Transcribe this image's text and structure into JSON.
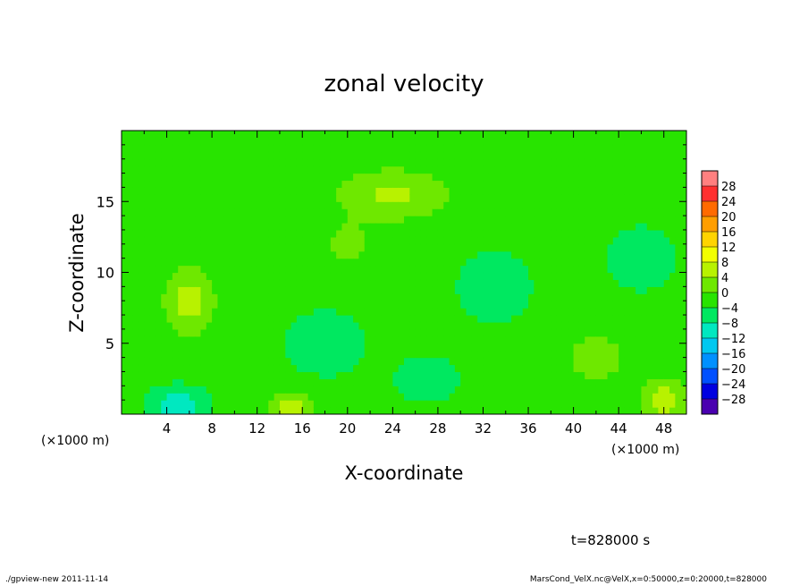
{
  "chart_data": {
    "type": "heatmap",
    "title": "zonal velocity",
    "xlabel": "X-coordinate",
    "ylabel": "Z-coordinate",
    "x_unit_left": "(×1000 m)",
    "x_unit_right": "(×1000 m)",
    "xlim": [
      0,
      50
    ],
    "ylim": [
      0,
      20
    ],
    "x_ticks": [
      "4",
      "8",
      "12",
      "16",
      "20",
      "24",
      "28",
      "32",
      "36",
      "40",
      "44",
      "48"
    ],
    "y_ticks": [
      "5",
      "10",
      "15"
    ],
    "colorbar": {
      "levels": [
        "28",
        "24",
        "20",
        "16",
        "12",
        "8",
        "4",
        "0",
        "−4",
        "−8",
        "−12",
        "−16",
        "−20",
        "−24",
        "−28"
      ],
      "colors": [
        "#ff8080",
        "#ff3030",
        "#ff6a00",
        "#ff9e00",
        "#ffd400",
        "#f2ff00",
        "#b8f200",
        "#6ee800",
        "#28e400",
        "#00e860",
        "#00e8c0",
        "#00c8f0",
        "#0090ff",
        "#0050ff",
        "#0000e0",
        "#4a00b0"
      ]
    },
    "field": {
      "background_value": -3,
      "features": [
        {
          "x": 24,
          "z": 15.5,
          "value": 5,
          "sx": 5,
          "sz": 1.8
        },
        {
          "x": 6,
          "z": 8,
          "value": 6,
          "sx": 2.2,
          "sz": 2.5
        },
        {
          "x": 46,
          "z": 11,
          "value": -8,
          "sx": 2.5,
          "sz": 1.8
        },
        {
          "x": 20,
          "z": 12,
          "value": 2,
          "sx": 2,
          "sz": 1.5
        },
        {
          "x": 5,
          "z": 0.5,
          "value": -12,
          "sx": 2.2,
          "sz": 1.2
        },
        {
          "x": 15,
          "z": 0.5,
          "value": 6,
          "sx": 2,
          "sz": 1.2
        },
        {
          "x": 18,
          "z": 5,
          "value": -7,
          "sx": 3,
          "sz": 2
        },
        {
          "x": 27,
          "z": 2.5,
          "value": -7,
          "sx": 2.5,
          "sz": 1.4
        },
        {
          "x": 48,
          "z": 1,
          "value": 7,
          "sx": 2,
          "sz": 1.5
        },
        {
          "x": 42,
          "z": 4,
          "value": 2,
          "sx": 3,
          "sz": 2
        },
        {
          "x": 33,
          "z": 9,
          "value": -5,
          "sx": 4,
          "sz": 3
        }
      ]
    }
  },
  "time_label": "t=828000 s",
  "footer_left": "./gpview-new  2011-11-14",
  "footer_right": "MarsCond_VelX.nc@VelX,x=0:50000,z=0:20000,t=828000"
}
